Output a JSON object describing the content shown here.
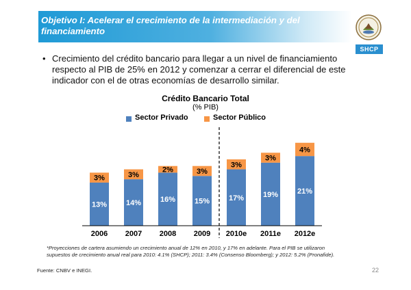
{
  "slide": {
    "title": "Objetivo I: Acelerar el crecimiento de la intermediación y del financiamiento",
    "logo_text": "SHCP",
    "bullet": "Crecimiento del crédito bancario para llegar a un nivel de financiamiento respecto al PIB de 25% en 2012 y comenzar a cerrar el diferencial de este indicador con el de otras economías de desarrollo similar.",
    "footnote": "*Proyecciones de cartera asumiendo un crecimiento anual de 12% en 2010, y 17% en adelante. Para el PIB se utilizaron supuestos de crecimiento anual real para 2010: 4.1% (SHCP); 2011: 3.4% (Consenso Bloomberg); y 2012: 5.2% (Pronafide).",
    "source": "Fuente: CNBV e INEGI.",
    "page_number": "22"
  },
  "chart_data": {
    "type": "bar",
    "stacked": true,
    "title": "Crédito Bancario Total",
    "subtitle": "(% PIB)",
    "categories": [
      "2006",
      "2007",
      "2008",
      "2009",
      "2010e",
      "2011e",
      "2012e"
    ],
    "series": [
      {
        "name": "Sector Privado",
        "values": [
          13,
          14,
          16,
          15,
          17,
          19,
          21
        ],
        "labels": [
          "13%",
          "14%",
          "16%",
          "15%",
          "17%",
          "19%",
          "21%"
        ],
        "color": "#4f81bd"
      },
      {
        "name": "Sector Público",
        "values": [
          3,
          3,
          2,
          3,
          3,
          3,
          4
        ],
        "labels": [
          "3%",
          "3%",
          "2%",
          "3%",
          "3%",
          "3%",
          "4%"
        ],
        "color": "#f79646"
      }
    ],
    "legend_position": "top",
    "divider_between": [
      "2009",
      "2010e"
    ],
    "grid": false
  }
}
